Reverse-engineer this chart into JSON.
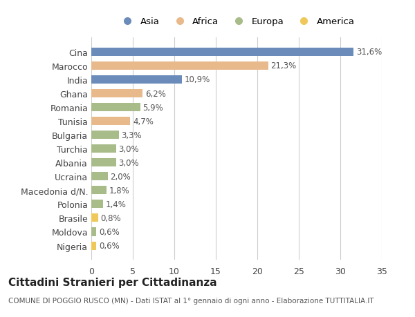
{
  "categories": [
    "Cina",
    "Marocco",
    "India",
    "Ghana",
    "Romania",
    "Tunisia",
    "Bulgaria",
    "Turchia",
    "Albania",
    "Ucraina",
    "Macedonia d/N.",
    "Polonia",
    "Brasile",
    "Moldova",
    "Nigeria"
  ],
  "values": [
    31.6,
    21.3,
    10.9,
    6.2,
    5.9,
    4.7,
    3.3,
    3.0,
    3.0,
    2.0,
    1.8,
    1.4,
    0.8,
    0.6,
    0.6
  ],
  "labels": [
    "31,6%",
    "21,3%",
    "10,9%",
    "6,2%",
    "5,9%",
    "4,7%",
    "3,3%",
    "3,0%",
    "3,0%",
    "2,0%",
    "1,8%",
    "1,4%",
    "0,8%",
    "0,6%",
    "0,6%"
  ],
  "colors": [
    "#6b8cba",
    "#e8b98a",
    "#6b8cba",
    "#e8b98a",
    "#a8bc8a",
    "#e8b98a",
    "#a8bc8a",
    "#a8bc8a",
    "#a8bc8a",
    "#a8bc8a",
    "#a8bc8a",
    "#a8bc8a",
    "#f0c85a",
    "#a8bc8a",
    "#f0c85a"
  ],
  "legend_labels": [
    "Asia",
    "Africa",
    "Europa",
    "America"
  ],
  "legend_colors": [
    "#6b8cba",
    "#e8b98a",
    "#a8bc8a",
    "#f0c85a"
  ],
  "title": "Cittadini Stranieri per Cittadinanza",
  "subtitle": "COMUNE DI POGGIO RUSCO (MN) - Dati ISTAT al 1° gennaio di ogni anno - Elaborazione TUTTITALIA.IT",
  "xlim": [
    0,
    35
  ],
  "xticks": [
    0,
    5,
    10,
    15,
    20,
    25,
    30,
    35
  ],
  "background_color": "#ffffff",
  "grid_color": "#cccccc"
}
